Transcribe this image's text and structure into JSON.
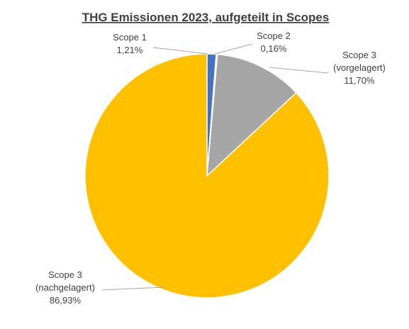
{
  "chart_data": {
    "type": "pie",
    "title": "THG Emissionen 2023, aufgeteilt in Scopes",
    "slices": [
      {
        "label_lines": [
          "Scope 1"
        ],
        "value_label": "1,21%",
        "value": 1.21,
        "color": "#4472c4"
      },
      {
        "label_lines": [
          "Scope 2"
        ],
        "value_label": "0,16%",
        "value": 0.16,
        "color": "#ed7d31"
      },
      {
        "label_lines": [
          "Scope 3",
          "(vorgelagert)"
        ],
        "value_label": "11,70%",
        "value": 11.7,
        "color": "#a5a5a5"
      },
      {
        "label_lines": [
          "Scope 3",
          "(nachgelagert)"
        ],
        "value_label": "86,93%",
        "value": 86.93,
        "color": "#ffc000"
      }
    ],
    "legend": "none"
  }
}
